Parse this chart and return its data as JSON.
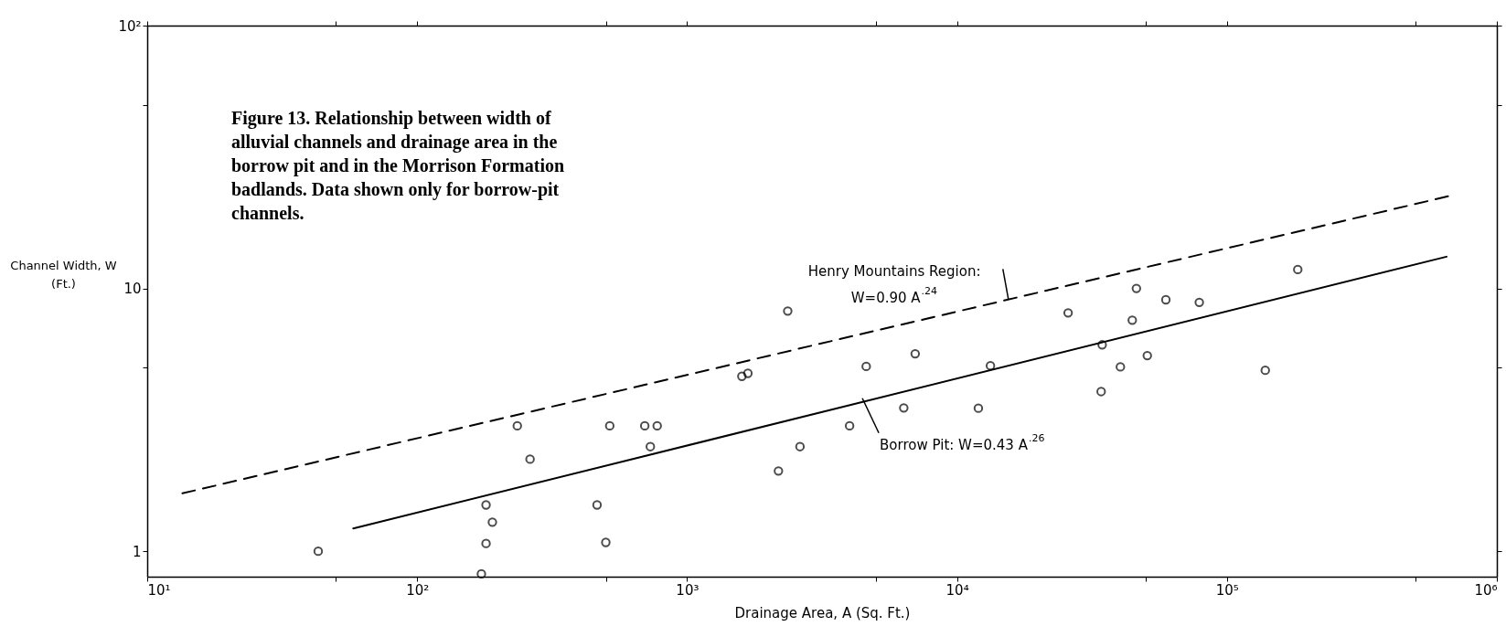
{
  "chart_data": {
    "type": "scatter",
    "title": "Figure 13. Relationship between width of alluvial channels and drainage area in the borrow pit and in the Morrison Formation badlands. Data shown only for borrow-pit channels.",
    "xlabel": "Drainage Area, A    (Sq. Ft.)",
    "ylabel": "Channel Width, W\n(Ft.)",
    "log": "xy",
    "xlim": [
      10,
      1000000
    ],
    "ylim": [
      0.8,
      100
    ],
    "xticks": [
      {
        "value": 10,
        "label": "10¹"
      },
      {
        "value": 50,
        "label": null
      },
      {
        "value": 100,
        "label": "10²"
      },
      {
        "value": 500,
        "label": null
      },
      {
        "value": 1000,
        "label": "10³"
      },
      {
        "value": 5000,
        "label": null
      },
      {
        "value": 10000,
        "label": "10⁴"
      },
      {
        "value": 50000,
        "label": null
      },
      {
        "value": 100000,
        "label": "10⁵"
      },
      {
        "value": 500000,
        "label": null
      },
      {
        "value": 1000000,
        "label": "10⁶"
      }
    ],
    "yticks": [
      1,
      {
        "value": 5,
        "label": null
      },
      10,
      {
        "value": 50,
        "label": null
      },
      {
        "value": 100,
        "label": "10²"
      }
    ],
    "series": [
      {
        "color": "#000000",
        "marker": "circle",
        "x": [
          43,
          173,
          180,
          190,
          180,
          235,
          262,
          464,
          500,
          517,
          697,
          775,
          731,
          1596,
          1680,
          2360,
          2180,
          2620,
          4000,
          4610,
          6350,
          7000,
          12000,
          13300,
          25800,
          34500,
          34200,
          40300,
          44600,
          46200,
          50700,
          59400,
          79000,
          138700,
          183000
        ],
        "values": [
          1.0,
          0.82,
          1.07,
          1.29,
          1.5,
          3.0,
          2.24,
          1.5,
          1.08,
          3.0,
          3.0,
          3.0,
          2.5,
          4.63,
          4.75,
          8.2,
          2.02,
          2.5,
          3.0,
          5.05,
          3.51,
          5.64,
          3.5,
          5.08,
          8.07,
          6.1,
          4.05,
          5.03,
          7.57,
          10.0,
          5.55,
          9.05,
          8.85,
          4.88,
          11.8
        ]
      },
      {
        "type": "line",
        "color": "#000000",
        "line_style": "solid",
        "x": [
          58,
          651000
        ],
        "values": [
          1.22,
          13.2
        ]
      },
      {
        "type": "line",
        "color": "#000000",
        "line_style": "dashed",
        "x": [
          13.5,
          659000
        ],
        "values": [
          1.66,
          22.4
        ]
      }
    ],
    "annotations": [
      {
        "text": "Henry Mountains Region:\nW=0.90 A$^{.24}$",
        "x": 15500,
        "y": 9.1
      },
      {
        "text": "Borrow Pit: W=0.43 A$^{.26}$",
        "x": 4460,
        "y": 3.82
      }
    ]
  }
}
